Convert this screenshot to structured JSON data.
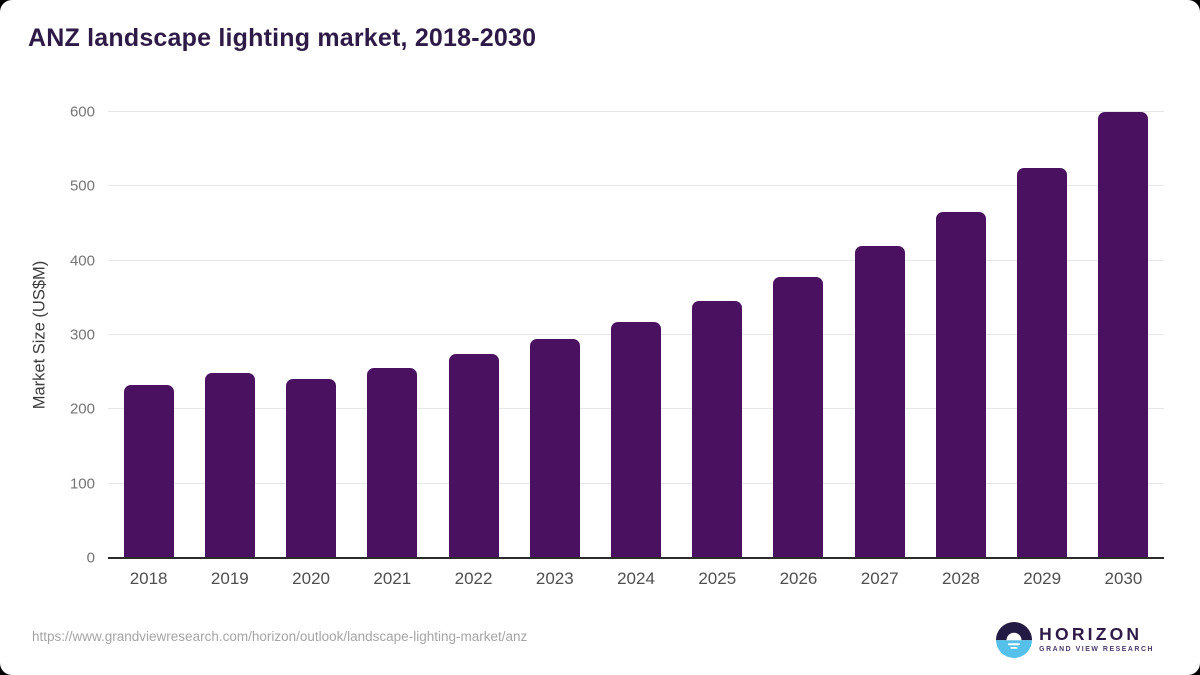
{
  "page": {
    "title": "ANZ landscape lighting market, 2018-2030",
    "source_url": "https://www.grandviewresearch.com/horizon/outlook/landscape-lighting-market/anz",
    "brand": {
      "name": "HORIZON",
      "subtitle": "GRAND VIEW RESEARCH"
    }
  },
  "chart_data": {
    "type": "bar",
    "title": "ANZ landscape lighting market, 2018-2030",
    "categories": [
      "2018",
      "2019",
      "2020",
      "2021",
      "2022",
      "2023",
      "2024",
      "2025",
      "2026",
      "2027",
      "2028",
      "2029",
      "2030"
    ],
    "values": [
      233,
      249,
      241,
      256,
      275,
      295,
      318,
      346,
      378,
      420,
      466,
      525,
      600
    ],
    "xlabel": "",
    "ylabel": "Market Size (US$M)",
    "ylim": [
      0,
      600
    ],
    "yticks": [
      0,
      100,
      200,
      300,
      400,
      500,
      600
    ],
    "grid": "horizontal",
    "legend": "none"
  },
  "colors": {
    "title": "#2e1a47",
    "bar": "#4a1160",
    "axis_label": "#3c3c3c",
    "tick_label": "#757575",
    "x_tick_label": "#4f4f4f",
    "gridline": "#e7e7e7",
    "baseline": "#2b2b2b",
    "source": "#a5a5a5",
    "brand_text": "#2e1a47",
    "brand_sub": "#4a3a6b",
    "logo_dark": "#241b45",
    "logo_blue": "#55c0ea"
  }
}
